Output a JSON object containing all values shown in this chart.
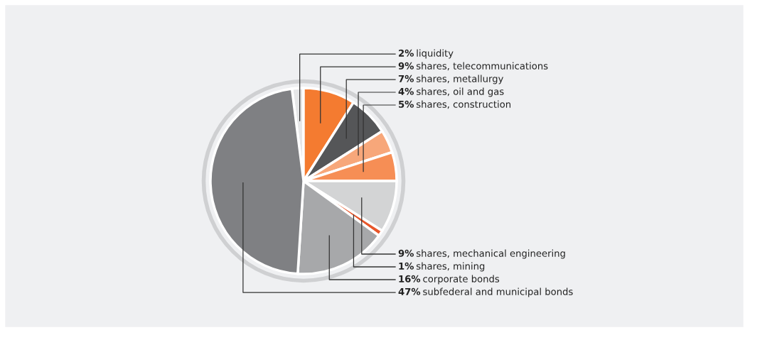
{
  "chart_data": {
    "type": "pie",
    "categories": [
      "liquidity",
      "shares, telecommunications",
      "shares, metallurgy",
      "shares, oil and gas",
      "shares, construction",
      "shares, mechanical engineering",
      "shares, mining",
      "corporate bonds",
      "subfederal and municipal bonds"
    ],
    "values": [
      2,
      9,
      7,
      4,
      5,
      9,
      1,
      16,
      47
    ],
    "value_labels": [
      "2%",
      "9%",
      "7%",
      "4%",
      "5%",
      "9%",
      "1%",
      "16%",
      "47%"
    ],
    "colors": [
      "#e6e7e8",
      "#f47b30",
      "#555658",
      "#f7a77a",
      "#f68e55",
      "#d3d4d5",
      "#e8562a",
      "#a7a8aa",
      "#7f8083"
    ]
  }
}
